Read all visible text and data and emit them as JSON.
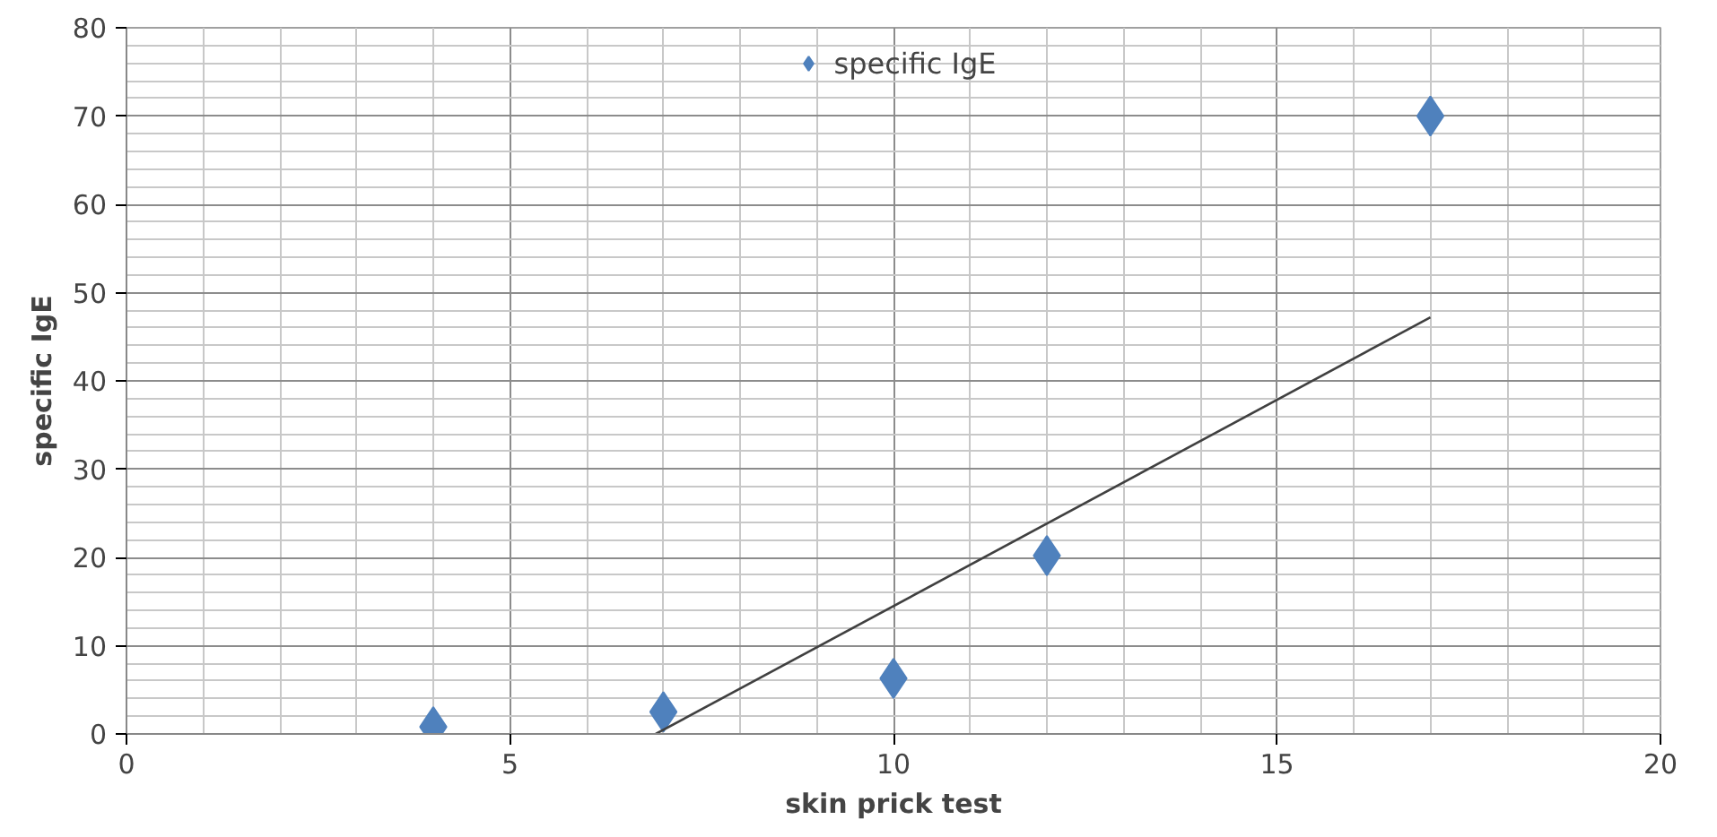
{
  "chart_data": {
    "type": "scatter",
    "xlabel": "skin prick test",
    "ylabel": "specific IgE",
    "x": [
      4,
      7,
      10,
      12,
      17
    ],
    "series": [
      {
        "name": "specific IgE",
        "color": "#4f81bd",
        "values": [
          0.8,
          2.5,
          6.3,
          20.2,
          70
        ],
        "marker": "diamond"
      },
      {
        "type": "line",
        "color": "#404040",
        "x": [
          6.9,
          17
        ],
        "values": [
          0,
          47.2
        ]
      }
    ],
    "xlim": [
      0,
      20
    ],
    "ylim": [
      0,
      80
    ],
    "xticks": [
      0,
      5,
      10,
      15,
      20
    ],
    "yticks": [
      0,
      10,
      20,
      30,
      40,
      50,
      60,
      70,
      80
    ],
    "grid": true,
    "legend": "top"
  }
}
